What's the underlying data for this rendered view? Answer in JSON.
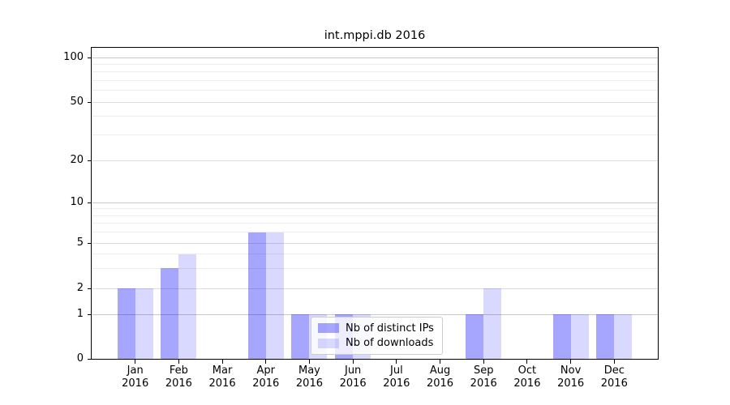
{
  "title": "int.mppi.db 2016",
  "chart_data": {
    "type": "bar",
    "categories": [
      "Jan",
      "Feb",
      "Mar",
      "Apr",
      "May",
      "Jun",
      "Jul",
      "Aug",
      "Sep",
      "Oct",
      "Nov",
      "Dec"
    ],
    "year_label": "2016",
    "series": [
      {
        "name": "Nb of distinct IPs",
        "color": "rgba(0,0,255,0.35)",
        "color_hex_on_white": "#a6a6ff",
        "values": [
          2,
          3,
          0,
          6,
          1,
          1,
          0,
          0,
          1,
          0,
          1,
          1
        ]
      },
      {
        "name": "Nb of downloads",
        "color": "rgba(0,0,255,0.15)",
        "color_hex_on_white": "#d9d9ff",
        "values": [
          2,
          4,
          0,
          6,
          1,
          1,
          0,
          0,
          2,
          0,
          1,
          1
        ]
      }
    ],
    "title": "int.mppi.db 2016",
    "xlabel": "",
    "ylabel": "",
    "yticks": [
      0,
      1,
      2,
      5,
      10,
      20,
      50,
      100
    ],
    "yscale": "symlog",
    "ylim": [
      0,
      115
    ],
    "grid": "both-horizontal",
    "legend_position": "inside-lower-center",
    "bar_layout": "grouped-pair-per-month"
  }
}
